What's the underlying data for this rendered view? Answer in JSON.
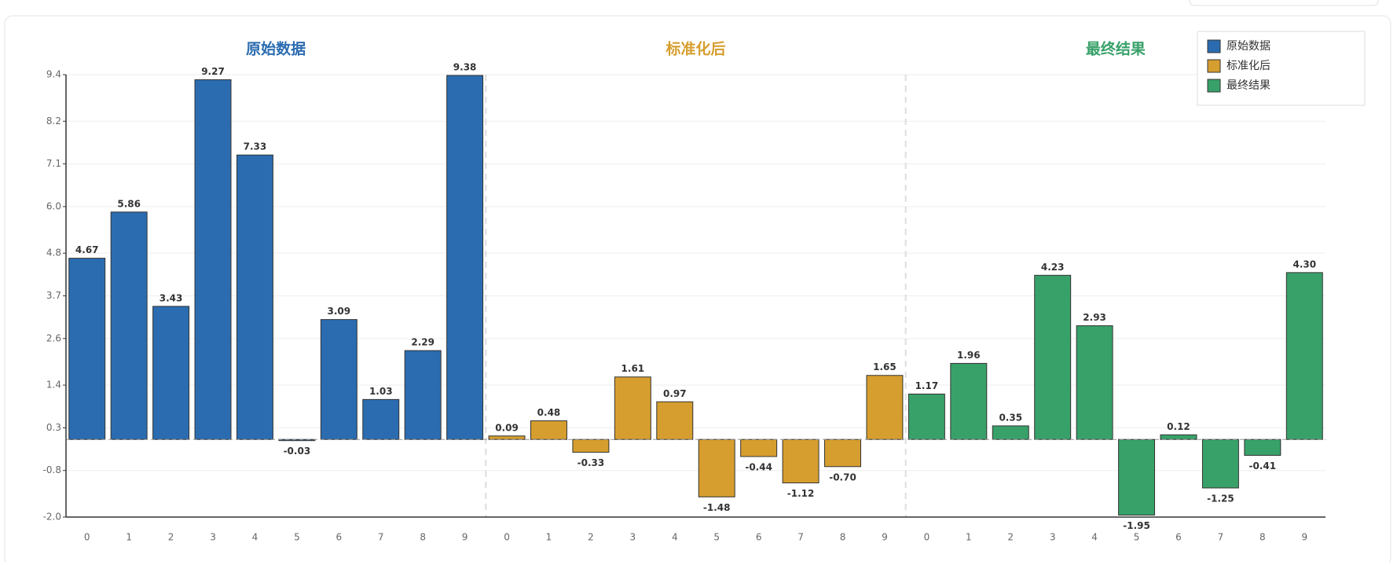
{
  "chart_data": {
    "type": "bar",
    "categories": [
      "0",
      "1",
      "2",
      "3",
      "4",
      "5",
      "6",
      "7",
      "8",
      "9"
    ],
    "series": [
      {
        "name": "原始数据",
        "color": "#2b6cb0",
        "values": [
          4.67,
          5.86,
          3.43,
          9.27,
          7.33,
          -0.03,
          3.09,
          1.03,
          2.29,
          9.38
        ],
        "value_labels": [
          "4.67",
          "5.86",
          "3.43",
          "9.27",
          "7.33",
          "-0.03",
          "3.09",
          "1.03",
          "2.29",
          "9.38"
        ]
      },
      {
        "name": "标准化后",
        "color": "#d69e2e",
        "values": [
          0.09,
          0.48,
          -0.33,
          1.61,
          0.97,
          -1.48,
          -0.44,
          -1.12,
          -0.7,
          1.65
        ],
        "value_labels": [
          "0.09",
          "0.48",
          "-0.33",
          "1.61",
          "0.97",
          "-1.48",
          "-0.44",
          "-1.12",
          "-0.70",
          "1.65"
        ]
      },
      {
        "name": "最终结果",
        "color": "#38a169",
        "values": [
          1.17,
          1.96,
          0.35,
          4.23,
          2.93,
          -1.95,
          0.12,
          -1.25,
          -0.41,
          4.3
        ],
        "value_labels": [
          "1.17",
          "1.96",
          "0.35",
          "4.23",
          "2.93",
          "-1.95",
          "0.12",
          "-1.25",
          "-0.41",
          "4.30"
        ]
      }
    ],
    "ylim": [
      -2.0,
      9.4
    ],
    "yticks": [
      {
        "value": -2.0,
        "label": "-2.0"
      },
      -0.8,
      0.3,
      1.4,
      2.6,
      3.7,
      4.8,
      {
        "value": 6.0,
        "label": "6.0"
      },
      7.1,
      8.2,
      9.4
    ],
    "grid": true,
    "legend": "upper right"
  }
}
